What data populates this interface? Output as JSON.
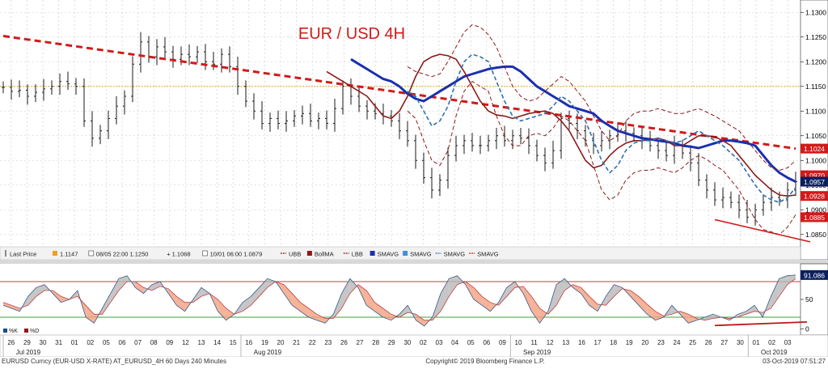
{
  "chart_data": {
    "type": "line",
    "title": "EUR / USD 4H",
    "title_color": "#d11a1a",
    "price_axis": {
      "min": 1.0825,
      "max": 1.1325,
      "ticks": [
        "1.1300",
        "1.1250",
        "1.1200",
        "1.1150",
        "1.1100",
        "1.1050",
        "1.1000",
        "1.0950",
        "1.0900",
        "1.0850"
      ],
      "tick_values": [
        1.13,
        1.125,
        1.12,
        1.115,
        1.11,
        1.105,
        1.1,
        1.095,
        1.09,
        1.085
      ]
    },
    "price_tags": [
      {
        "label": "1.1024",
        "value": 1.1024,
        "bg": "#d11a1a",
        "fg": "#ffffff"
      },
      {
        "label": "1.0970",
        "value": 1.097,
        "bg": "#d11a1a",
        "fg": "#ffffff"
      },
      {
        "label": "1.0957",
        "value": 1.0957,
        "bg": "#0b1f5e",
        "fg": "#ffffff"
      },
      {
        "label": "1.0928",
        "value": 1.0928,
        "bg": "#d11a1a",
        "fg": "#ffffff"
      },
      {
        "label": "1.0885",
        "value": 1.0885,
        "bg": "#d11a1a",
        "fg": "#ffffff"
      }
    ],
    "legend": {
      "items": [
        {
          "label": "Last Price",
          "color": "#222222",
          "kind": "ohlc"
        },
        {
          "label": "1.1147",
          "color": "#f0a020",
          "kind": "box"
        },
        {
          "label": "08/05 22:00 1.1250",
          "color": "#444444",
          "kind": "box-outline"
        },
        {
          "label": "+ 1.1068",
          "color": "#444444",
          "kind": "none"
        },
        {
          "label": "10/01 06:00 1.0879",
          "color": "#444444",
          "kind": "box-outline"
        },
        {
          "label": "UBB",
          "color": "#8b1a1a",
          "kind": "dash"
        },
        {
          "label": "BollMA",
          "color": "#8b1a1a",
          "kind": "box"
        },
        {
          "label": "LBB",
          "color": "#8b1a1a",
          "kind": "dash"
        },
        {
          "label": "SMAVG",
          "color": "#1a2fb0",
          "kind": "box"
        },
        {
          "label": "SMAVG",
          "color": "#3f8fd8",
          "kind": "box"
        },
        {
          "label": "SMAVG",
          "color": "#3b6ea8",
          "kind": "dash"
        },
        {
          "label": "SMAVG",
          "color": "#d11a1a",
          "kind": "dash"
        }
      ]
    },
    "osc_axis": {
      "min": -10,
      "max": 110,
      "ticks": [
        "50",
        "0"
      ],
      "tick_values": [
        50,
        0
      ]
    },
    "osc_legend": [
      {
        "label": "%K",
        "color": "#1a4a8a"
      },
      {
        "label": "%D",
        "color": "#8b1a1a"
      }
    ],
    "osc_tag": {
      "label": "91.086",
      "value": 91.086
    },
    "osc_levels": [
      80,
      20
    ],
    "x_axis": {
      "day_labels": [
        "26",
        "29",
        "30",
        "31",
        "01",
        "02",
        "05",
        "06",
        "07",
        "08",
        "09",
        "12",
        "13",
        "14",
        "15",
        "16",
        "19",
        "20",
        "21",
        "22",
        "23",
        "26",
        "27",
        "28",
        "29",
        "30",
        "02",
        "03",
        "04",
        "05",
        "06",
        "09",
        "10",
        "11",
        "12",
        "13",
        "16",
        "17",
        "18",
        "19",
        "20",
        "23",
        "24",
        "25",
        "26",
        "27",
        "30",
        "01",
        "02",
        "03"
      ],
      "month_labels": [
        {
          "label": "Jul 2019",
          "index": 0
        },
        {
          "label": "Aug 2019",
          "index": 15
        },
        {
          "label": "Sep 2019",
          "index": 32
        },
        {
          "label": "Oct 2019",
          "index": 47
        }
      ]
    },
    "price_close": [
      1.1148,
      1.114,
      1.1142,
      1.113,
      1.1138,
      1.1145,
      1.115,
      1.116,
      1.1155,
      1.115,
      1.108,
      1.1045,
      1.106,
      1.1085,
      1.111,
      1.113,
      1.1195,
      1.124,
      1.121,
      1.123,
      1.122,
      1.1205,
      1.1215,
      1.121,
      1.122,
      1.12,
      1.1195,
      1.1215,
      1.119,
      1.115,
      1.112,
      1.11,
      1.1075,
      1.1085,
      1.1075,
      1.108,
      1.109,
      1.1095,
      1.108,
      1.1085,
      1.1075,
      1.1105,
      1.115,
      1.113,
      1.111,
      1.11,
      1.1095,
      1.109,
      1.108,
      1.106,
      1.104,
      1.1,
      1.0965,
      1.094,
      1.096,
      1.101,
      1.103,
      1.104,
      1.103,
      1.103,
      1.104,
      1.105,
      1.104,
      1.105,
      1.1045,
      1.103,
      1.101,
      1.0995,
      1.102,
      1.1085,
      1.1075,
      1.106,
      1.104,
      1.103,
      1.104,
      1.105,
      1.106,
      1.1055,
      1.105,
      1.104,
      1.103,
      1.102,
      1.101,
      1.103,
      1.1015,
      1.0995,
      1.096,
      1.094,
      1.092,
      1.0925,
      1.0915,
      1.09,
      1.0885,
      1.09,
      1.0915,
      1.0925,
      1.092,
      1.094,
      1.0957
    ],
    "series": [
      {
        "values": [
          1.1252,
          1.1249,
          1.1246,
          1.1243,
          1.124,
          1.1237,
          1.1234,
          1.1231,
          1.1228,
          1.1225,
          1.1222,
          1.1219,
          1.1216,
          1.1213,
          1.121,
          1.1207,
          1.1204,
          1.1201,
          1.1198,
          1.1195,
          1.1192,
          1.1189,
          1.1186,
          1.1183,
          1.118,
          1.1177,
          1.1174,
          1.1171,
          1.1168,
          1.1165,
          1.1162,
          1.1159,
          1.1156,
          1.1153,
          1.115,
          1.1147,
          1.1144,
          1.1141,
          1.1138,
          1.1135,
          1.1132,
          1.1129,
          1.1126,
          1.1123,
          1.112,
          1.1117,
          1.1114,
          1.1111,
          1.1108,
          1.1105,
          1.1102,
          1.1099,
          1.1096,
          1.1093,
          1.109,
          1.1087,
          1.1084,
          1.1081,
          1.1078,
          1.1075,
          1.1072,
          1.1069,
          1.1066,
          1.1063,
          1.106,
          1.1057,
          1.1054,
          1.1051,
          1.1048,
          1.1045,
          1.1042,
          1.1039,
          1.1036,
          1.1033,
          1.103,
          1.1027,
          1.1024
        ],
        "color": "#d11a1a",
        "style": "dashed-thick",
        "x_start": 0
      },
      {
        "values": [
          1.1205,
          1.1195,
          1.1185,
          1.1175,
          1.1165,
          1.116,
          1.115,
          1.1135,
          1.1125,
          1.112,
          1.113,
          1.114,
          1.115,
          1.116,
          1.117,
          1.1175,
          1.118,
          1.1185,
          1.1188,
          1.119,
          1.119,
          1.118,
          1.1165,
          1.115,
          1.114,
          1.113,
          1.112,
          1.111,
          1.1105,
          1.11,
          1.1095,
          1.108,
          1.107,
          1.106,
          1.1055,
          1.105,
          1.1045,
          1.1043,
          1.104,
          1.1038,
          1.1035,
          1.103,
          1.1028,
          1.1025,
          1.103,
          1.1035,
          1.104,
          1.104,
          1.1038,
          1.1035,
          1.103,
          1.101,
          1.099,
          1.0975,
          1.0965,
          1.0957
        ],
        "color": "#1a2fb0",
        "style": "solid-thick",
        "x_start": 43
      },
      {
        "values": [
          1.118,
          1.117,
          1.116,
          1.115,
          1.114,
          1.113,
          1.111,
          1.109,
          1.1085,
          1.11,
          1.113,
          1.117,
          1.12,
          1.121,
          1.1215,
          1.1212,
          1.1205,
          1.118,
          1.115,
          1.112,
          1.11,
          1.1092,
          1.109,
          1.1085,
          1.109,
          1.1095,
          1.1098,
          1.11,
          1.1095,
          1.108,
          1.106,
          1.103,
          1.1,
          1.0985,
          1.099,
          1.101,
          1.1025,
          1.1035,
          1.104,
          1.104,
          1.1042,
          1.1045,
          1.104,
          1.103,
          1.103,
          1.104,
          1.105,
          1.105,
          1.1048,
          1.104,
          1.103,
          1.101,
          1.099,
          1.097,
          1.0955,
          1.094,
          1.093,
          1.0928,
          1.093
        ],
        "color": "#8b1a1a",
        "style": "solid",
        "x_start": 40
      },
      {
        "values": [
          1.114,
          1.113,
          1.11,
          1.107,
          1.108,
          1.111,
          1.116,
          1.12,
          1.1215,
          1.121,
          1.12,
          1.116,
          1.112,
          1.109,
          1.108,
          1.1085,
          1.109,
          1.1095,
          1.111,
          1.113,
          1.112,
          1.11,
          1.108,
          1.104,
          1.1,
          1.0975,
          1.099,
          1.102,
          1.1035,
          1.104,
          1.104,
          1.1045,
          1.104,
          1.1035,
          1.104,
          1.105,
          1.106,
          1.105,
          1.104,
          1.103,
          1.1015,
          1.1,
          1.0975,
          1.095,
          1.093,
          1.092,
          1.0915,
          1.0925,
          1.0945
        ],
        "color": "#2f6fb0",
        "style": "dashed",
        "x_start": 50
      },
      {
        "values": [
          1.119,
          1.118,
          1.1175,
          1.117,
          1.1175,
          1.12,
          1.123,
          1.126,
          1.1275,
          1.127,
          1.1255,
          1.123,
          1.119,
          1.115,
          1.113,
          1.112,
          1.1125,
          1.114,
          1.1155,
          1.117,
          1.116,
          1.114,
          1.112,
          1.109,
          1.106,
          1.104,
          1.105,
          1.108,
          1.1095,
          1.11,
          1.11,
          1.1105,
          1.11,
          1.1095,
          1.1095,
          1.11,
          1.1105,
          1.1098,
          1.109,
          1.108,
          1.107,
          1.106,
          1.104,
          1.102,
          1.1,
          1.0985,
          1.098,
          1.0985,
          1.1
        ],
        "color": "#8b1a1a",
        "style": "dashed-thin",
        "x_start": 50
      },
      {
        "values": [
          1.11,
          1.1085,
          1.104,
          1.1,
          1.099,
          1.102,
          1.109,
          1.114,
          1.116,
          1.115,
          1.114,
          1.109,
          1.105,
          1.103,
          1.103,
          1.105,
          1.1055,
          1.105,
          1.1065,
          1.109,
          1.108,
          1.106,
          1.104,
          1.099,
          1.094,
          1.092,
          1.093,
          1.096,
          1.0975,
          1.098,
          1.098,
          1.0985,
          1.098,
          1.0975,
          1.0985,
          1.1,
          1.101,
          1.1002,
          1.099,
          1.098,
          1.096,
          1.094,
          1.091,
          1.088,
          1.086,
          1.0855,
          1.085,
          1.0865,
          1.089
        ],
        "color": "#8b1a1a",
        "style": "dashed-thin",
        "x_start": 50
      }
    ],
    "trendline": {
      "from": [
        88,
        1.088
      ],
      "to": [
        99,
        1.0835
      ],
      "color": "#d11a1a"
    },
    "resistance": {
      "value": 1.115,
      "color": "#e8a030"
    },
    "osc_k": [
      40,
      35,
      30,
      55,
      70,
      75,
      60,
      45,
      50,
      65,
      20,
      10,
      35,
      60,
      85,
      90,
      70,
      60,
      75,
      80,
      60,
      40,
      30,
      50,
      70,
      60,
      30,
      15,
      25,
      45,
      55,
      70,
      85,
      80,
      60,
      40,
      30,
      20,
      15,
      10,
      25,
      60,
      85,
      70,
      40,
      30,
      20,
      15,
      25,
      40,
      15,
      5,
      20,
      60,
      85,
      90,
      75,
      50,
      40,
      30,
      45,
      70,
      80,
      60,
      30,
      10,
      30,
      75,
      85,
      70,
      60,
      40,
      30,
      55,
      75,
      70,
      55,
      40,
      25,
      15,
      20,
      40,
      25,
      10,
      15,
      20,
      25,
      20,
      15,
      25,
      30,
      40,
      20,
      55,
      85,
      90,
      91
    ],
    "osc_d": [
      45,
      40,
      35,
      40,
      55,
      65,
      65,
      55,
      50,
      55,
      40,
      25,
      25,
      45,
      65,
      80,
      80,
      70,
      65,
      72,
      68,
      55,
      45,
      45,
      55,
      60,
      50,
      35,
      25,
      30,
      40,
      55,
      70,
      80,
      75,
      60,
      45,
      35,
      25,
      18,
      18,
      35,
      60,
      75,
      65,
      45,
      35,
      25,
      20,
      28,
      25,
      15,
      15,
      30,
      55,
      75,
      80,
      70,
      55,
      45,
      40,
      55,
      70,
      72,
      55,
      35,
      25,
      40,
      65,
      75,
      70,
      55,
      42,
      40,
      55,
      68,
      65,
      55,
      42,
      30,
      22,
      25,
      30,
      25,
      18,
      15,
      18,
      20,
      18,
      20,
      25,
      30,
      28,
      35,
      55,
      75,
      85
    ],
    "osc_trendline": {
      "from": [
        88,
        6
      ],
      "to": [
        99,
        12
      ]
    }
  },
  "footer": {
    "left": "EURUSD Curncy (EUR-USD X-RATE) AT_EURUSD_4H 60 Days 240 Minutes",
    "center": "Copyright© 2019 Bloomberg Finance L.P.",
    "right": "03-Oct-2019 07:51:27"
  }
}
